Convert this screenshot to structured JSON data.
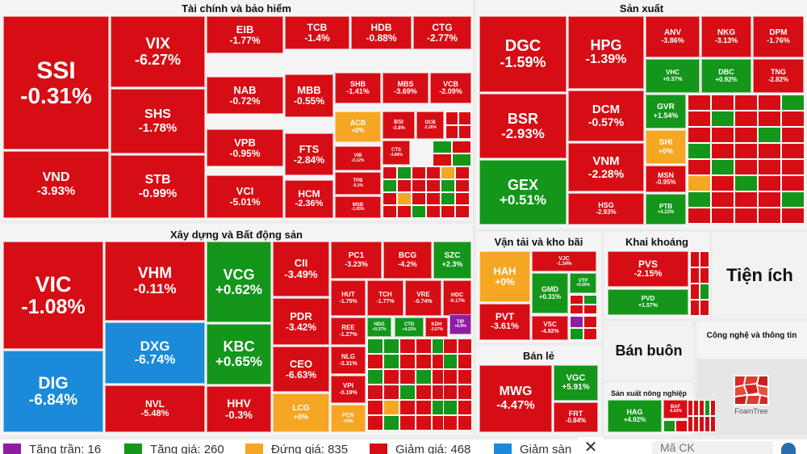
{
  "sectors": {
    "finance": {
      "title": "Tài chính và bảo hiểm"
    },
    "manufacturing": {
      "title": "Sản xuất"
    },
    "construction": {
      "title": "Xây dựng và Bất động sản"
    },
    "transport": {
      "title": "Vận tải và kho bãi"
    },
    "mining": {
      "title": "Khai khoáng"
    },
    "utilities": {
      "title": "Tiện ích"
    },
    "retail": {
      "title": "Bán lẻ"
    },
    "wholesale": {
      "title": "Bán buôn"
    },
    "it": {
      "title": "Công nghệ và thông tin"
    },
    "agriculture": {
      "title": "Sản xuất nông nghiệp"
    }
  },
  "tiles": {
    "SSI": {
      "ticker": "SSI",
      "pct": "-0.31%"
    },
    "VND": {
      "ticker": "VND",
      "pct": "-3.93%"
    },
    "VIX": {
      "ticker": "VIX",
      "pct": "-6.27%"
    },
    "SHS": {
      "ticker": "SHS",
      "pct": "-1.78%"
    },
    "STB": {
      "ticker": "STB",
      "pct": "-0.99%"
    },
    "EIB": {
      "ticker": "EIB",
      "pct": "-1.77%"
    },
    "NAB": {
      "ticker": "NAB",
      "pct": "-0.72%"
    },
    "VPB": {
      "ticker": "VPB",
      "pct": "-0.95%"
    },
    "VCI": {
      "ticker": "VCI",
      "pct": "-5.01%"
    },
    "TCB": {
      "ticker": "TCB",
      "pct": "-1.4%"
    },
    "HDB": {
      "ticker": "HDB",
      "pct": "-0.88%"
    },
    "CTG": {
      "ticker": "CTG",
      "pct": "-2.77%"
    },
    "MBB": {
      "ticker": "MBB",
      "pct": "-0.55%"
    },
    "FTS": {
      "ticker": "FTS",
      "pct": "-2.84%"
    },
    "HCM": {
      "ticker": "HCM",
      "pct": "-2.36%"
    },
    "SHB": {
      "ticker": "SHB",
      "pct": "-1.41%"
    },
    "MBS": {
      "ticker": "MBS",
      "pct": "-3.69%"
    },
    "VCB": {
      "ticker": "VCB",
      "pct": "-2.09%"
    },
    "ACB": {
      "ticker": "ACB",
      "pct": "+0%"
    },
    "BSI": {
      "ticker": "BSI",
      "pct": "-3.8%"
    },
    "OCB": {
      "ticker": "OCB",
      "pct": "-2.26%"
    },
    "VIB": {
      "ticker": "VIB",
      "pct": "-0.12%"
    },
    "CTS": {
      "ticker": "CTS",
      "pct": "-4.86%"
    },
    "TPB": {
      "ticker": "TPB",
      "pct": "-0.3%"
    },
    "MSB": {
      "ticker": "MSB",
      "pct": "-1.05%"
    },
    "DGC": {
      "ticker": "DGC",
      "pct": "-1.59%"
    },
    "BSR": {
      "ticker": "BSR",
      "pct": "-2.93%"
    },
    "GEX": {
      "ticker": "GEX",
      "pct": "+0.51%"
    },
    "HPG": {
      "ticker": "HPG",
      "pct": "-1.39%"
    },
    "DCM": {
      "ticker": "DCM",
      "pct": "-0.57%"
    },
    "VNM": {
      "ticker": "VNM",
      "pct": "-2.28%"
    },
    "HSG": {
      "ticker": "HSG",
      "pct": "-2.93%"
    },
    "ANV": {
      "ticker": "ANV",
      "pct": "-3.86%"
    },
    "NKG": {
      "ticker": "NKG",
      "pct": "-3.13%"
    },
    "DPM": {
      "ticker": "DPM",
      "pct": "-1.76%"
    },
    "VHC": {
      "ticker": "VHC",
      "pct": "+0.37%"
    },
    "DBC": {
      "ticker": "DBC",
      "pct": "+0.92%"
    },
    "TNG": {
      "ticker": "TNG",
      "pct": "-2.82%"
    },
    "GVR": {
      "ticker": "GVR",
      "pct": "+1.54%"
    },
    "SHI": {
      "ticker": "SHI",
      "pct": "+0%"
    },
    "MSN": {
      "ticker": "MSN",
      "pct": "-0.95%"
    },
    "PTB": {
      "ticker": "PTB",
      "pct": "+4.22%"
    },
    "VIC": {
      "ticker": "VIC",
      "pct": "-1.08%"
    },
    "DIG": {
      "ticker": "DIG",
      "pct": "-6.84%"
    },
    "VHM": {
      "ticker": "VHM",
      "pct": "-0.11%"
    },
    "DXG": {
      "ticker": "DXG",
      "pct": "-6.74%"
    },
    "NVL": {
      "ticker": "NVL",
      "pct": "-5.48%"
    },
    "VCG": {
      "ticker": "VCG",
      "pct": "+0.62%"
    },
    "KBC": {
      "ticker": "KBC",
      "pct": "+0.65%"
    },
    "HHV": {
      "ticker": "HHV",
      "pct": "-0.3%"
    },
    "CII": {
      "ticker": "CII",
      "pct": "-3.49%"
    },
    "PDR": {
      "ticker": "PDR",
      "pct": "-3.42%"
    },
    "CEO": {
      "ticker": "CEO",
      "pct": "-6.63%"
    },
    "LCG": {
      "ticker": "LCG",
      "pct": "+0%"
    },
    "PC1": {
      "ticker": "PC1",
      "pct": "-3.23%"
    },
    "BCG": {
      "ticker": "BCG",
      "pct": "-4.2%"
    },
    "SZC": {
      "ticker": "SZC",
      "pct": "+2.3%"
    },
    "HUT": {
      "ticker": "HUT",
      "pct": "-1.75%"
    },
    "TCH": {
      "ticker": "TCH",
      "pct": "-1.77%"
    },
    "VRE": {
      "ticker": "VRE",
      "pct": "-0.74%"
    },
    "HDC": {
      "ticker": "HDC",
      "pct": "-0.17%"
    },
    "REE": {
      "ticker": "REE",
      "pct": "-1.27%"
    },
    "HDG": {
      "ticker": "HDG",
      "pct": "+0.37%"
    },
    "CTD": {
      "ticker": "CTD",
      "pct": "+4.22%"
    },
    "KDH": {
      "ticker": "KDH",
      "pct": "-2.07%"
    },
    "TIP": {
      "ticker": "TIP",
      "pct": "+6.9%"
    },
    "NLG": {
      "ticker": "NLG",
      "pct": "-3.31%"
    },
    "VPI": {
      "ticker": "VPI",
      "pct": "-0.19%"
    },
    "FCN": {
      "ticker": "FCN",
      "pct": "+0%"
    },
    "HAH": {
      "ticker": "HAH",
      "pct": "+0%"
    },
    "PVT": {
      "ticker": "PVT",
      "pct": "-3.61%"
    },
    "VJC": {
      "ticker": "VJC",
      "pct": "-1.34%"
    },
    "GMD": {
      "ticker": "GMD",
      "pct": "+0.31%"
    },
    "VTP": {
      "ticker": "VTP",
      "pct": "+0.59%"
    },
    "VSC": {
      "ticker": "VSC",
      "pct": "-4.92%"
    },
    "PVS": {
      "ticker": "PVS",
      "pct": "-2.15%"
    },
    "PVD": {
      "ticker": "PVD",
      "pct": "+1.57%"
    },
    "MWG": {
      "ticker": "MWG",
      "pct": "-4.47%"
    },
    "VGC": {
      "ticker": "VGC",
      "pct": "+5.91%"
    },
    "FRT": {
      "ticker": "FRT",
      "pct": "-0.84%"
    },
    "HAG": {
      "ticker": "HAG",
      "pct": "+4.92%"
    },
    "BAF": {
      "ticker": "BAF",
      "pct": "-6.62%"
    }
  },
  "legend": [
    {
      "label": "Tăng trần: 16",
      "color": "#8f1da1"
    },
    {
      "label": "Tăng giá: 260",
      "color": "#13961a"
    },
    {
      "label": "Đứng giá: 835",
      "color": "#f5a623"
    },
    {
      "label": "Giảm giá: 468",
      "color": "#d60d14"
    },
    {
      "label": "Giảm sàn",
      "color": "#1b8ad8"
    }
  ],
  "search": {
    "placeholder": "Mã CK"
  },
  "close": {
    "glyph": "✕"
  },
  "branding": {
    "label": "FoamTree"
  },
  "colors": {
    "up": "#13961a",
    "down": "#d60d14",
    "flat": "#f5a623",
    "ceiling": "#8f1da1",
    "floor": "#1b8ad8"
  }
}
